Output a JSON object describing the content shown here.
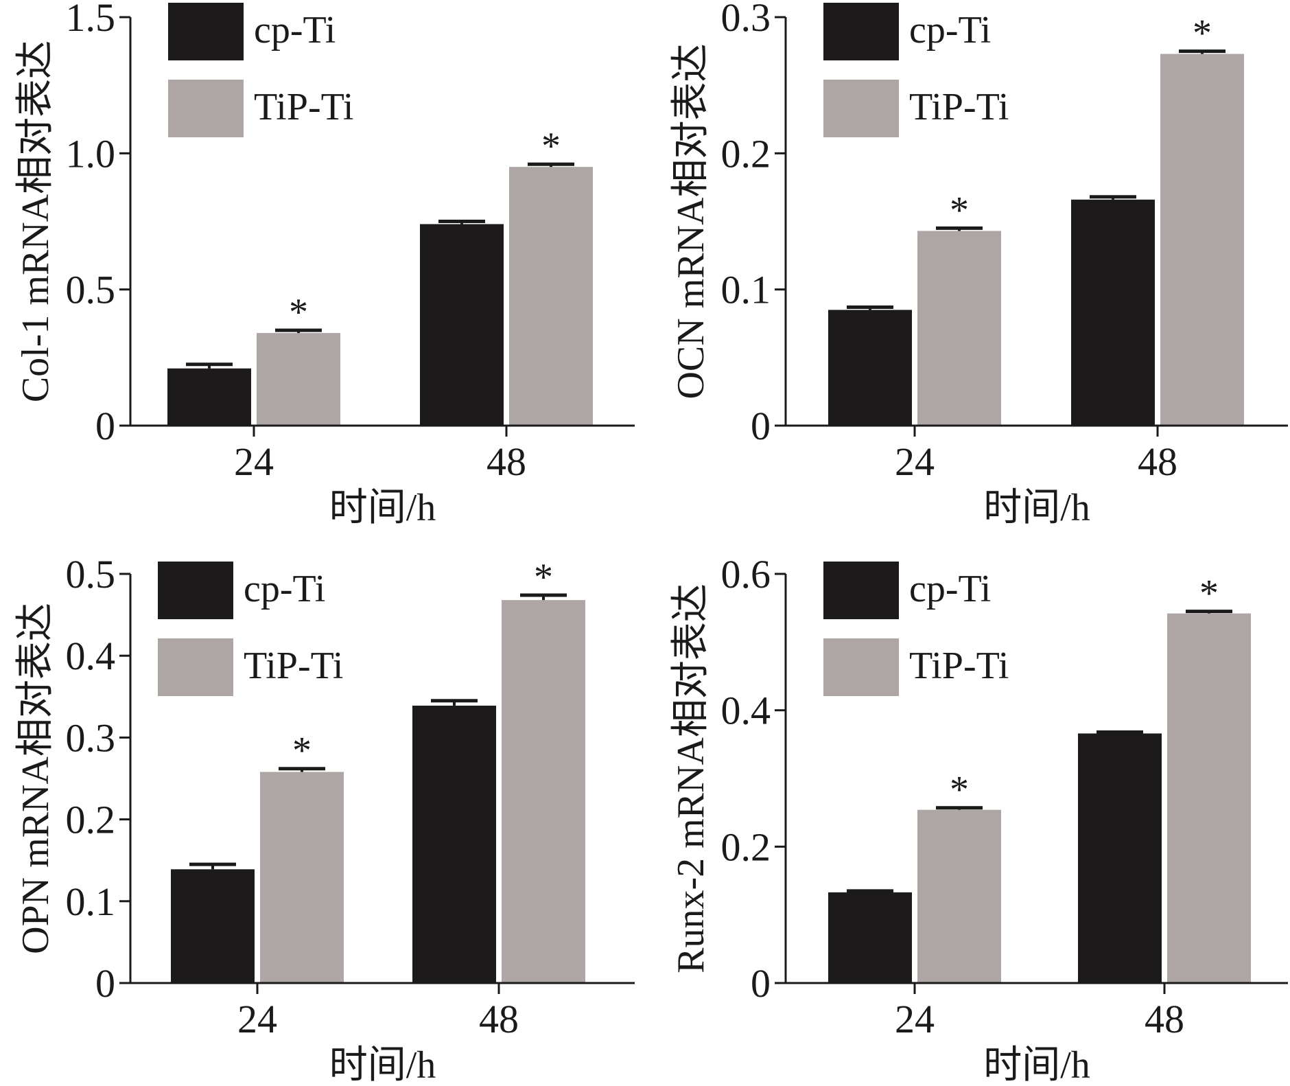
{
  "colors": {
    "cp_ti": "#1c1a1a",
    "tip_ti": "#aea5a5",
    "axis": "#1a1a1a"
  },
  "chart_data": [
    {
      "type": "bar",
      "title": "",
      "xlabel": "时间/h",
      "ylabel": "Col-1 mRNA相对表达",
      "categories": [
        "24",
        "48"
      ],
      "ylim": [
        0,
        1.5
      ],
      "yticks": [
        0,
        0.5,
        1.0,
        1.5
      ],
      "ytick_labels": [
        "0",
        "0.5",
        "1.0",
        "1.5"
      ],
      "series": [
        {
          "name": "cp-Ti",
          "values": [
            0.21,
            0.74
          ],
          "errors": [
            0.015,
            0.01
          ],
          "significance": [
            "",
            ""
          ]
        },
        {
          "name": "TiP-Ti",
          "values": [
            0.34,
            0.95
          ],
          "errors": [
            0.01,
            0.01
          ],
          "significance": [
            "*",
            "*"
          ]
        }
      ],
      "legend": "top-left"
    },
    {
      "type": "bar",
      "title": "",
      "xlabel": "时间/h",
      "ylabel": "OCN mRNA相对表达",
      "categories": [
        "24",
        "48"
      ],
      "ylim": [
        0,
        0.3
      ],
      "yticks": [
        0,
        0.1,
        0.2,
        0.3
      ],
      "ytick_labels": [
        "0",
        "0.1",
        "0.2",
        "0.3"
      ],
      "series": [
        {
          "name": "cp-Ti",
          "values": [
            0.085,
            0.166
          ],
          "errors": [
            0.002,
            0.002
          ],
          "significance": [
            "",
            ""
          ]
        },
        {
          "name": "TiP-Ti",
          "values": [
            0.143,
            0.273
          ],
          "errors": [
            0.002,
            0.002
          ],
          "significance": [
            "*",
            "*"
          ]
        }
      ],
      "legend": "top-left"
    },
    {
      "type": "bar",
      "title": "",
      "xlabel": "时间/h",
      "ylabel": "OPN mRNA相对表达",
      "categories": [
        "24",
        "48"
      ],
      "ylim": [
        0,
        0.5
      ],
      "yticks": [
        0,
        0.1,
        0.2,
        0.3,
        0.4,
        0.5
      ],
      "ytick_labels": [
        "0",
        "0.1",
        "0.2",
        "0.3",
        "0.4",
        "0.5"
      ],
      "series": [
        {
          "name": "cp-Ti",
          "values": [
            0.139,
            0.339
          ],
          "errors": [
            0.006,
            0.006
          ],
          "significance": [
            "",
            ""
          ]
        },
        {
          "name": "TiP-Ti",
          "values": [
            0.258,
            0.468
          ],
          "errors": [
            0.004,
            0.006
          ],
          "significance": [
            "*",
            "*"
          ]
        }
      ],
      "legend": "top-left"
    },
    {
      "type": "bar",
      "title": "",
      "xlabel": "时间/h",
      "ylabel": "Runx-2 mRNA相对表达",
      "categories": [
        "24",
        "48"
      ],
      "ylim": [
        0,
        0.6
      ],
      "yticks": [
        0,
        0.2,
        0.4,
        0.6
      ],
      "ytick_labels": [
        "0",
        "0.2",
        "0.4",
        "0.6"
      ],
      "series": [
        {
          "name": "cp-Ti",
          "values": [
            0.133,
            0.366
          ],
          "errors": [
            0.002,
            0.002
          ],
          "significance": [
            "",
            ""
          ]
        },
        {
          "name": "TiP-Ti",
          "values": [
            0.254,
            0.542
          ],
          "errors": [
            0.003,
            0.003
          ],
          "significance": [
            "*",
            "*"
          ]
        }
      ],
      "legend": "top-left"
    }
  ]
}
